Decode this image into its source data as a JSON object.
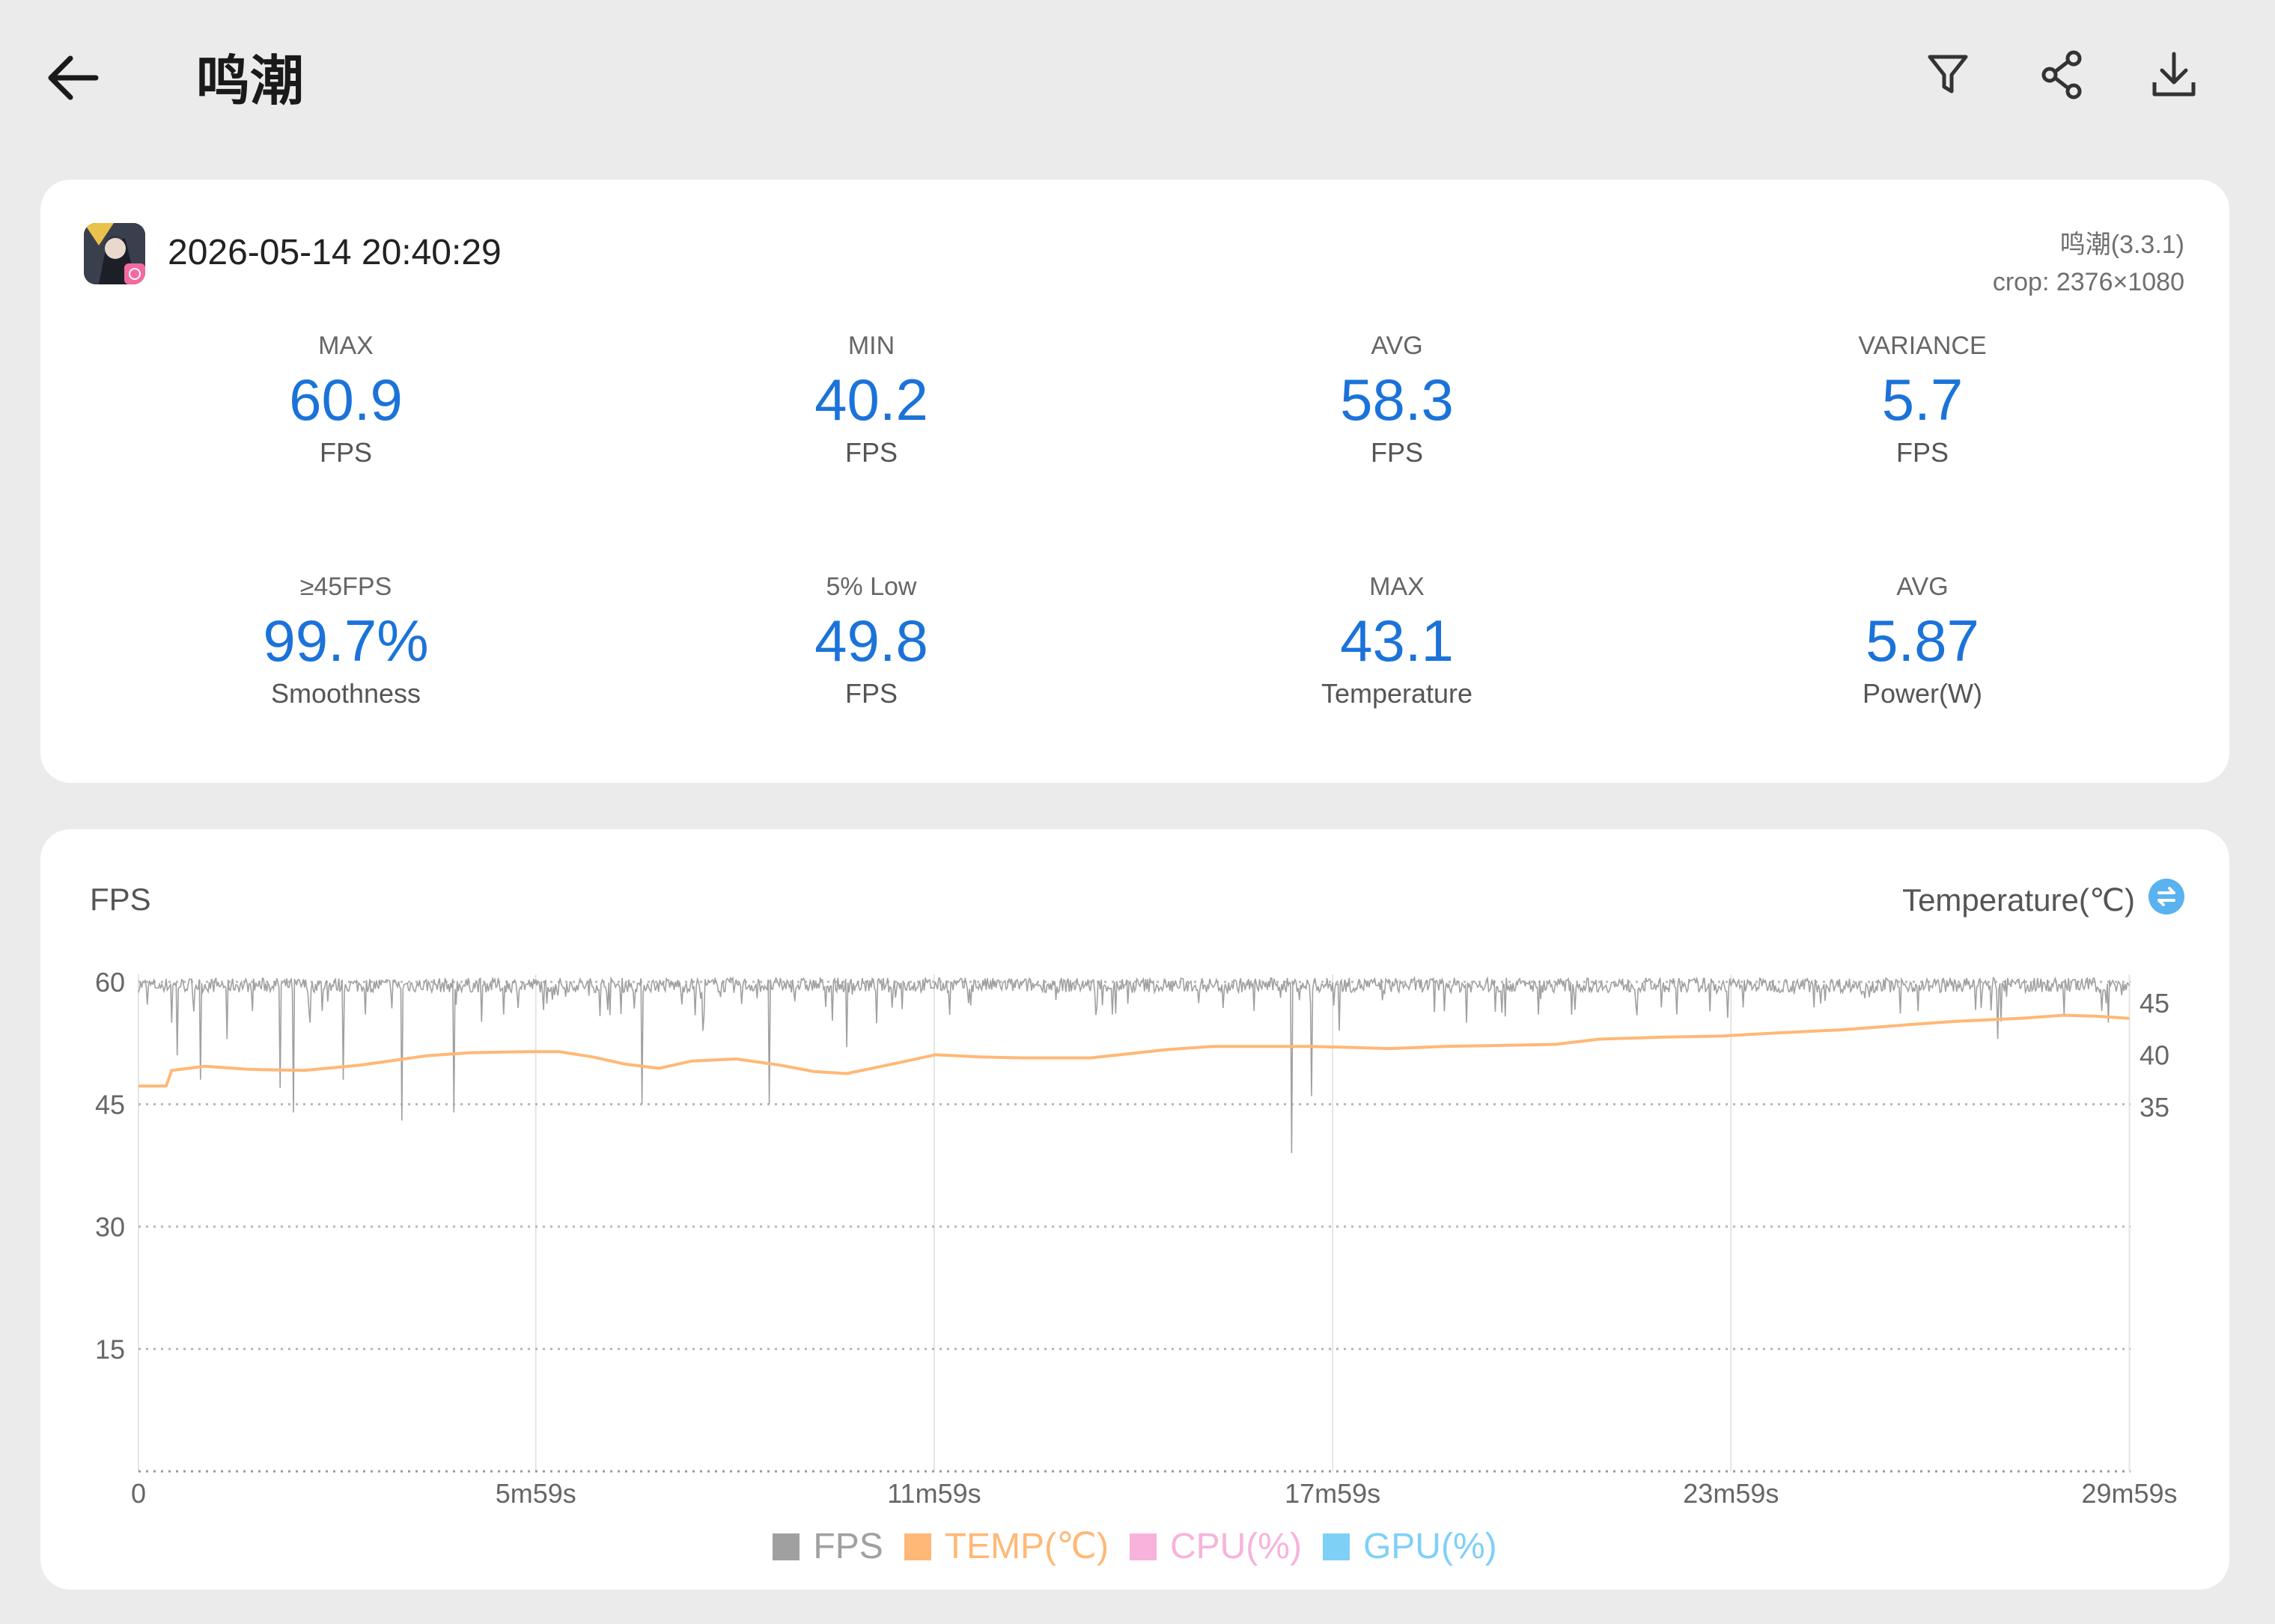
{
  "header": {
    "title": "鸣潮"
  },
  "summary": {
    "timestamp": "2026-05-14 20:40:29",
    "app_version": "鸣潮(3.3.1)",
    "crop": "crop: 2376×1080",
    "stats": [
      {
        "label": "MAX",
        "value": "60.9",
        "unit": "FPS"
      },
      {
        "label": "MIN",
        "value": "40.2",
        "unit": "FPS"
      },
      {
        "label": "AVG",
        "value": "58.3",
        "unit": "FPS"
      },
      {
        "label": "VARIANCE",
        "value": "5.7",
        "unit": "FPS"
      },
      {
        "label": "≥45FPS",
        "value": "99.7%",
        "unit": "Smoothness"
      },
      {
        "label": "5% Low",
        "value": "49.8",
        "unit": "FPS"
      },
      {
        "label": "MAX",
        "value": "43.1",
        "unit": "Temperature"
      },
      {
        "label": "AVG",
        "value": "5.87",
        "unit": "Power(W)"
      }
    ],
    "value_color": "#1b73d9"
  },
  "chart": {
    "ylabel": "FPS",
    "y2label": "Temperature(℃)",
    "legend": [
      {
        "label": "FPS",
        "color": "#a0a0a0"
      },
      {
        "label": "TEMP(℃)",
        "color": "#ffb877"
      },
      {
        "label": "CPU(%)",
        "color": "#f7b3dc"
      },
      {
        "label": "GPU(%)",
        "color": "#7fd0f7"
      }
    ]
  },
  "chart_data": {
    "type": "line",
    "x_ticks": [
      "0",
      "5m59s",
      "11m59s",
      "17m59s",
      "23m59s",
      "29m59s"
    ],
    "x_tick_seconds": [
      0,
      359,
      719,
      1079,
      1439,
      1799
    ],
    "xlim": [
      0,
      1800
    ],
    "y_ticks": [
      "15",
      "30",
      "45",
      "60"
    ],
    "y_tick_values": [
      15,
      30,
      45,
      60
    ],
    "ylim": [
      0,
      60
    ],
    "y2_ticks": [
      "35",
      "40",
      "45"
    ],
    "y2_tick_values": [
      35,
      40,
      45
    ],
    "y2lim": [
      0,
      47
    ],
    "grid": "horizontal dotted",
    "legend_position": "bottom",
    "series": [
      {
        "name": "FPS",
        "axis": "left",
        "baseline": 59.6,
        "dips": [
          [
            30,
            55
          ],
          [
            35,
            51
          ],
          [
            56,
            48
          ],
          [
            80,
            53
          ],
          [
            128,
            47
          ],
          [
            140,
            44
          ],
          [
            155,
            55
          ],
          [
            185,
            48
          ],
          [
            205,
            56
          ],
          [
            238,
            43
          ],
          [
            285,
            44
          ],
          [
            330,
            56
          ],
          [
            455,
            45
          ],
          [
            510,
            54
          ],
          [
            570,
            45
          ],
          [
            640,
            52
          ],
          [
            880,
            56
          ],
          [
            1042,
            39
          ],
          [
            1060,
            46
          ],
          [
            1085,
            54
          ],
          [
            1200,
            55
          ],
          [
            1265,
            56
          ],
          [
            1680,
            53
          ],
          [
            1740,
            56
          ],
          [
            1780,
            55
          ]
        ]
      },
      {
        "name": "TEMP(℃)",
        "axis": "right",
        "points": [
          [
            0,
            37.0
          ],
          [
            25,
            37.0
          ],
          [
            30,
            38.5
          ],
          [
            60,
            38.9
          ],
          [
            100,
            38.6
          ],
          [
            150,
            38.5
          ],
          [
            200,
            39.0
          ],
          [
            260,
            39.9
          ],
          [
            300,
            40.2
          ],
          [
            350,
            40.3
          ],
          [
            380,
            40.3
          ],
          [
            410,
            39.8
          ],
          [
            440,
            39.1
          ],
          [
            470,
            38.7
          ],
          [
            500,
            39.4
          ],
          [
            540,
            39.6
          ],
          [
            580,
            39.0
          ],
          [
            610,
            38.4
          ],
          [
            640,
            38.2
          ],
          [
            690,
            39.3
          ],
          [
            720,
            40.0
          ],
          [
            760,
            39.8
          ],
          [
            800,
            39.7
          ],
          [
            860,
            39.7
          ],
          [
            930,
            40.5
          ],
          [
            970,
            40.8
          ],
          [
            1040,
            40.8
          ],
          [
            1060,
            40.8
          ],
          [
            1100,
            40.7
          ],
          [
            1130,
            40.6
          ],
          [
            1180,
            40.8
          ],
          [
            1280,
            41.0
          ],
          [
            1320,
            41.5
          ],
          [
            1380,
            41.7
          ],
          [
            1430,
            41.8
          ],
          [
            1480,
            42.1
          ],
          [
            1540,
            42.4
          ],
          [
            1600,
            42.9
          ],
          [
            1640,
            43.2
          ],
          [
            1700,
            43.5
          ],
          [
            1740,
            43.8
          ],
          [
            1770,
            43.7
          ],
          [
            1799,
            43.5
          ]
        ]
      },
      {
        "name": "CPU(%)",
        "points": []
      },
      {
        "name": "GPU(%)",
        "points": []
      }
    ]
  }
}
